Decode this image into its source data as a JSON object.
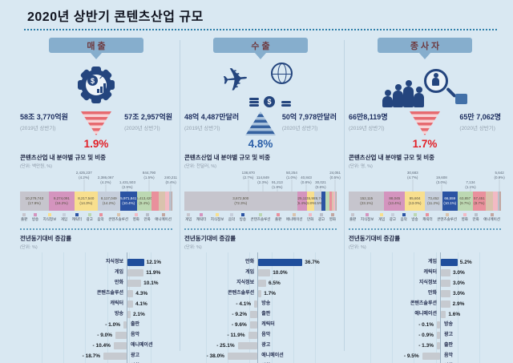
{
  "title": "2020년 상반기 콘텐츠산업 규모",
  "colors": {
    "background": "#d9e8f2",
    "panel_blue": "#86aecd",
    "accent_red": "#e21f26",
    "accent_blue": "#2b5fa8",
    "bar_highlight": "#1f4e9c",
    "bar_gray": "#c6cad0"
  },
  "palette": [
    "#c6c5cd",
    "#d494be",
    "#f8df8e",
    "#c6cedb",
    "#2b53a3",
    "#bcd8b2",
    "#e9909c",
    "#d9c3ad",
    "#f2bac4",
    "#b9bfca",
    "#c2a6a0"
  ],
  "columns": [
    {
      "id": "sales",
      "header": "매출",
      "icon": "gear-coin-chart-icon",
      "prev": {
        "value": "58조 3,770억원",
        "period": "(2019년 상반기)"
      },
      "curr": {
        "value": "57조 2,957억원",
        "period": "(2020년 상반기)"
      },
      "change": {
        "value": "1.9%",
        "direction": "down"
      }
    },
    {
      "id": "export",
      "header": "수출",
      "icon": "airplane-globe-money-icon",
      "prev": {
        "value": "48억 4,487만달러",
        "period": "(2019년 상반기)"
      },
      "curr": {
        "value": "50억 7,978만달러",
        "period": "(2020년 상반기)"
      },
      "change": {
        "value": "4.8%",
        "direction": "up"
      }
    },
    {
      "id": "workers",
      "header": "종사자",
      "icon": "workers-magnifier-icon",
      "prev": {
        "value": "66만8,119명",
        "period": "(2019년 상반기)"
      },
      "curr": {
        "value": "65만 7,062명",
        "period": "(2020년 상반기)"
      },
      "change": {
        "value": "1.7%",
        "direction": "down"
      }
    }
  ],
  "chart_data": [
    {
      "id": "sales-share",
      "type": "bar",
      "stacked": true,
      "title": "콘텐츠산업 내 분야별 규모 및 비중",
      "unit": "(단위: 백만원, %)",
      "categories": [
        "출판",
        "방송",
        "지식정보",
        "게임",
        "캐릭터",
        "광고",
        "음악",
        "콘텐츠솔루션",
        "영화",
        "만화",
        "애니메이션"
      ],
      "value_labels": [
        "10,279,743",
        "9,274,091",
        "8,217,540",
        "8,117,049",
        "5,971,841",
        "5,413,420",
        "2,425,237",
        "2,386,067",
        "1,431,503",
        "844,790",
        "240,211"
      ],
      "shares": [
        17.9,
        16.2,
        14.3,
        14.2,
        10.4,
        9.4,
        4.2,
        4.2,
        2.5,
        1.5,
        0.4
      ],
      "label_inside": [
        true,
        true,
        true,
        true,
        true,
        true,
        false,
        false,
        false,
        false,
        false
      ]
    },
    {
      "id": "sales-growth",
      "type": "bar",
      "horizontal": true,
      "title": "전년동기대비 증감률",
      "unit": "(단위: %)",
      "categories": [
        "지식정보",
        "게임",
        "만화",
        "콘텐츠솔루션",
        "캐릭터",
        "방송",
        "출판",
        "음악",
        "애니메이션",
        "광고",
        "영화"
      ],
      "values": [
        12.1,
        11.9,
        10.1,
        4.3,
        4.1,
        2.1,
        -1.0,
        -9.0,
        -10.4,
        -18.7,
        -54.2
      ]
    },
    {
      "id": "export-share",
      "type": "bar",
      "stacked": true,
      "title": "콘텐츠산업 내 분야별 규모 및 비중",
      "unit": "(단위: 천달러, %)",
      "categories": [
        "게임",
        "캐릭터",
        "지식정보",
        "음악",
        "방송",
        "콘텐츠솔루션",
        "출판",
        "애니메이션",
        "만화",
        "광고",
        "영화"
      ],
      "value_labels": [
        "3,672,500",
        "325,111",
        "245,904",
        "228,745",
        "138,870",
        "114,849",
        "91,213",
        "50,254",
        "40,843",
        "30,021",
        "24,051"
      ],
      "shares": [
        72.3,
        6.4,
        4.8,
        4.5,
        2.7,
        2.3,
        1.8,
        1.0,
        0.8,
        0.6,
        0.5
      ],
      "label_inside": [
        true,
        true,
        true,
        true,
        false,
        false,
        false,
        false,
        false,
        false,
        false
      ]
    },
    {
      "id": "export-growth",
      "type": "bar",
      "horizontal": true,
      "title": "전년동기대비 증감률",
      "unit": "(단위: %)",
      "categories": [
        "만화",
        "게임",
        "지식정보",
        "콘텐츠솔루션",
        "방송",
        "출판",
        "캐릭터",
        "음악",
        "광고",
        "애니메이션",
        "영화"
      ],
      "values": [
        36.7,
        10.0,
        6.5,
        1.7,
        -4.1,
        -9.2,
        -9.6,
        -11.9,
        -25.1,
        -38.0,
        -54.8
      ]
    },
    {
      "id": "workers-share",
      "type": "bar",
      "stacked": true,
      "title": "콘텐츠산업 내 분야별 규모 및 비중",
      "unit": "(단위: 명, %)",
      "categories": [
        "출판",
        "지식정보",
        "게임",
        "광고",
        "음악",
        "방송",
        "캐릭터",
        "콘텐츠솔루션",
        "영화",
        "만화",
        "애니메이션"
      ],
      "value_labels": [
        "152,115",
        "88,045",
        "85,604",
        "73,452",
        "66,559",
        "63,857",
        "57,451",
        "30,683",
        "19,608",
        "7,134",
        "5,642"
      ],
      "shares": [
        23.1,
        13.4,
        13.0,
        11.2,
        10.1,
        9.7,
        8.7,
        4.7,
        3.0,
        1.1,
        0.9
      ],
      "label_inside": [
        true,
        true,
        true,
        true,
        true,
        true,
        true,
        false,
        false,
        false,
        false
      ]
    },
    {
      "id": "workers-growth",
      "type": "bar",
      "horizontal": true,
      "title": "전년동기대비 증감률",
      "unit": "(단위: %)",
      "categories": [
        "게임",
        "캐릭터",
        "지식정보",
        "만화",
        "콘텐츠솔루션",
        "애니메이션",
        "방송",
        "광고",
        "출판",
        "음악",
        "영화"
      ],
      "values": [
        5.2,
        3.0,
        3.0,
        3.0,
        2.9,
        1.6,
        -0.1,
        -0.9,
        -1.3,
        -9.5,
        -33.6
      ]
    }
  ]
}
